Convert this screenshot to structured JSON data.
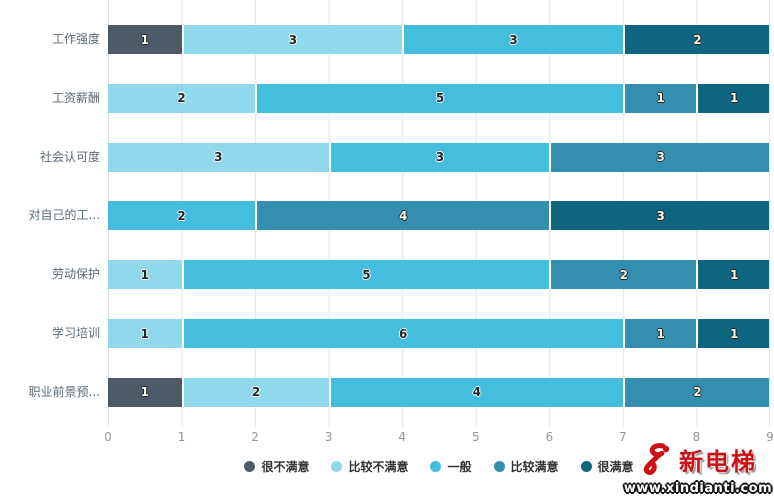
{
  "chart_data": {
    "type": "bar",
    "variant": "horizontal-stacked",
    "categories": [
      "工作强度",
      "工资薪酬",
      "社会认可度",
      "对自己的工...",
      "劳动保护",
      "学习培训",
      "职业前景预..."
    ],
    "series": [
      {
        "name": "很不满意",
        "color": "#4e5b66",
        "label_tone": "light",
        "values": [
          1,
          0,
          0,
          0,
          0,
          0,
          1
        ]
      },
      {
        "name": "比较不满意",
        "color": "#90d9ec",
        "label_tone": "dark",
        "values": [
          3,
          2,
          3,
          0,
          1,
          1,
          2
        ]
      },
      {
        "name": "一般",
        "color": "#45bddd",
        "label_tone": "dark",
        "values": [
          3,
          5,
          3,
          2,
          5,
          6,
          4
        ]
      },
      {
        "name": "比较满意",
        "color": "#338fad",
        "label_tone": "light",
        "values": [
          0,
          1,
          3,
          4,
          2,
          1,
          2
        ]
      },
      {
        "name": "很满意",
        "color": "#0e6681",
        "label_tone": "light",
        "values": [
          2,
          1,
          0,
          3,
          1,
          1,
          0
        ]
      }
    ],
    "xlabel": "",
    "ylabel": "",
    "xlim": [
      0,
      9
    ],
    "x_ticks": [
      "0",
      "1",
      "2",
      "3",
      "4",
      "5",
      "6",
      "7",
      "8",
      "9"
    ],
    "grid": true,
    "legend_position": "bottom"
  },
  "colors": {
    "gridline": "#e4e4e4",
    "axis_text": "#8f979c",
    "category_text": "#5b6b76",
    "watermark_red": "#cc1016"
  },
  "watermark": {
    "brand": "新电梯",
    "url": "www.xindianti.com"
  }
}
